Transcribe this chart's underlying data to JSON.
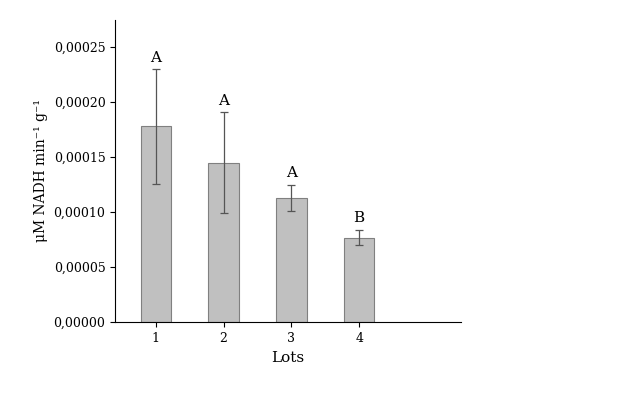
{
  "categories": [
    "1",
    "2",
    "3",
    "4"
  ],
  "values": [
    0.000178,
    0.000145,
    0.000113,
    7.7e-05
  ],
  "errors": [
    5.2e-05,
    4.6e-05,
    1.2e-05,
    7e-06
  ],
  "bar_color": "#c0c0c0",
  "bar_edgecolor": "#808080",
  "error_color": "#555555",
  "labels": [
    "A",
    "A",
    "A",
    "B"
  ],
  "xlabel": "Lots",
  "ylabel": "μM NADH min⁻¹ g⁻¹",
  "ylim": [
    0,
    0.000275
  ],
  "yticks": [
    0.0,
    5e-05,
    0.0001,
    0.00015,
    0.0002,
    0.00025
  ],
  "xlabel_fontsize": 11,
  "ylabel_fontsize": 10,
  "tick_fontsize": 9,
  "label_fontsize": 11,
  "bar_width": 0.45
}
